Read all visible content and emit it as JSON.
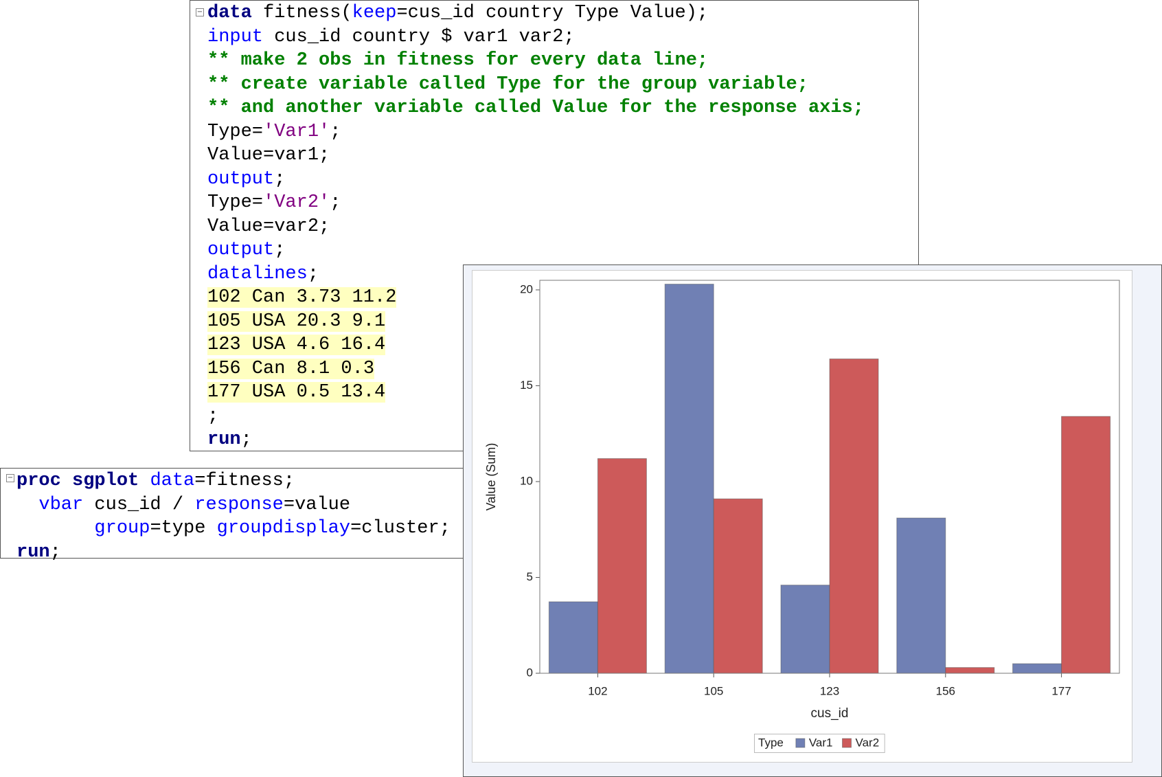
{
  "code_blocks": [
    {
      "lines": [
        {
          "tokens": [
            {
              "text": "data",
              "color": "#000080",
              "bold": true
            },
            {
              "text": " fitness(",
              "color": "#000000"
            },
            {
              "text": "keep",
              "color": "#0000ff"
            },
            {
              "text": "=cus_id country Type Value);",
              "color": "#000000"
            }
          ]
        },
        {
          "tokens": [
            {
              "text": "input",
              "color": "#0000ff"
            },
            {
              "text": " cus_id country $ var1 var2;",
              "color": "#000000"
            }
          ]
        },
        {
          "tokens": [
            {
              "text": "** make 2 obs in fitness for every data line;",
              "color": "#008000",
              "bold": true
            }
          ]
        },
        {
          "tokens": [
            {
              "text": "** create variable called Type for the group variable;",
              "color": "#008000",
              "bold": true
            }
          ]
        },
        {
          "tokens": [
            {
              "text": "** and another variable called Value for the response axis;",
              "color": "#008000",
              "bold": true
            }
          ]
        },
        {
          "tokens": [
            {
              "text": "Type=",
              "color": "#000000"
            },
            {
              "text": "'Var1'",
              "color": "#800080"
            },
            {
              "text": ";",
              "color": "#000000"
            }
          ]
        },
        {
          "tokens": [
            {
              "text": "Value=var1;",
              "color": "#000000"
            }
          ]
        },
        {
          "tokens": [
            {
              "text": "output",
              "color": "#0000ff"
            },
            {
              "text": ";",
              "color": "#000000"
            }
          ]
        },
        {
          "tokens": [
            {
              "text": "Type=",
              "color": "#000000"
            },
            {
              "text": "'Var2'",
              "color": "#800080"
            },
            {
              "text": ";",
              "color": "#000000"
            }
          ]
        },
        {
          "tokens": [
            {
              "text": "Value=var2;",
              "color": "#000000"
            }
          ]
        },
        {
          "tokens": [
            {
              "text": "output",
              "color": "#0000ff"
            },
            {
              "text": ";",
              "color": "#000000"
            }
          ]
        },
        {
          "tokens": [
            {
              "text": "datalines",
              "color": "#0000ff"
            },
            {
              "text": ";",
              "color": "#000000"
            }
          ]
        },
        {
          "highlight": "#ffffc0",
          "tokens": [
            {
              "text": "102 Can 3.73 11.2",
              "color": "#000000"
            }
          ]
        },
        {
          "highlight": "#ffffc0",
          "tokens": [
            {
              "text": "105 USA 20.3 9.1",
              "color": "#000000"
            }
          ]
        },
        {
          "highlight": "#ffffc0",
          "tokens": [
            {
              "text": "123 USA 4.6 16.4",
              "color": "#000000"
            }
          ]
        },
        {
          "highlight": "#ffffc0",
          "tokens": [
            {
              "text": "156 Can 8.1 0.3",
              "color": "#000000"
            }
          ]
        },
        {
          "highlight": "#ffffc0",
          "tokens": [
            {
              "text": "177 USA 0.5 13.4",
              "color": "#000000"
            }
          ]
        },
        {
          "tokens": [
            {
              "text": ";",
              "color": "#000000"
            }
          ]
        },
        {
          "tokens": [
            {
              "text": "run",
              "color": "#000080",
              "bold": true
            },
            {
              "text": ";",
              "color": "#000000"
            }
          ]
        }
      ]
    },
    {
      "lines": [
        {
          "tokens": [
            {
              "text": "proc sgplot",
              "color": "#000080",
              "bold": true
            },
            {
              "text": " ",
              "color": "#000000"
            },
            {
              "text": "data",
              "color": "#0000ff"
            },
            {
              "text": "=fitness;",
              "color": "#000000"
            }
          ]
        },
        {
          "tokens": [
            {
              "text": "  vbar",
              "color": "#0000ff"
            },
            {
              "text": " cus_id / ",
              "color": "#000000"
            },
            {
              "text": "response",
              "color": "#0000ff"
            },
            {
              "text": "=value",
              "color": "#000000"
            }
          ]
        },
        {
          "tokens": [
            {
              "text": "       group",
              "color": "#0000ff"
            },
            {
              "text": "=type ",
              "color": "#000000"
            },
            {
              "text": "groupdisplay",
              "color": "#0000ff"
            },
            {
              "text": "=cluster;",
              "color": "#000000"
            }
          ]
        },
        {
          "tokens": [
            {
              "text": "run",
              "color": "#000080",
              "bold": true
            },
            {
              "text": ";",
              "color": "#000000"
            }
          ]
        }
      ]
    }
  ],
  "chart_data": {
    "type": "bar",
    "categories": [
      "102",
      "105",
      "123",
      "156",
      "177"
    ],
    "series": [
      {
        "name": "Var1",
        "color": "#7080b4",
        "values": [
          3.73,
          20.3,
          4.6,
          8.1,
          0.5
        ]
      },
      {
        "name": "Var2",
        "color": "#cd5a5a",
        "values": [
          11.2,
          9.1,
          16.4,
          0.3,
          13.4
        ]
      }
    ],
    "xlabel": "cus_id",
    "ylabel": "Value (Sum)",
    "legend_title": "Type",
    "ylim": [
      0,
      20.5
    ],
    "yticks": [
      0,
      5,
      10,
      15,
      20
    ],
    "grid": false,
    "legend": "bottom"
  }
}
